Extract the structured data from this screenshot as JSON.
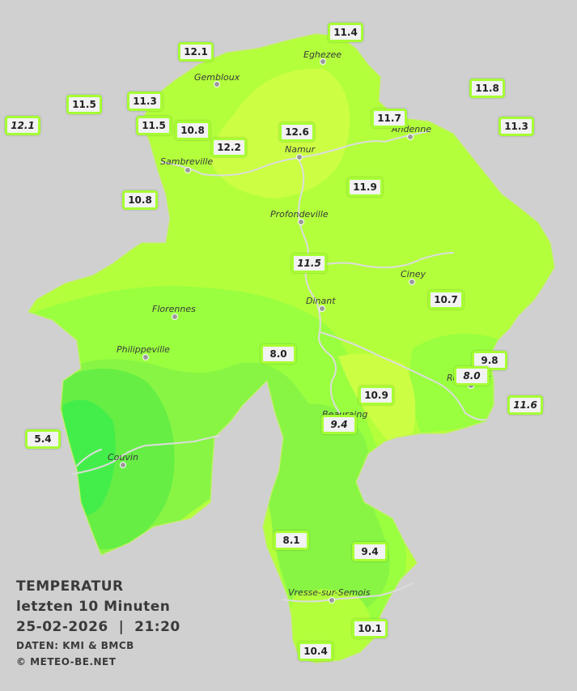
{
  "legend": {
    "title": "TEMPERATUR",
    "subtitle": "letzten 10 Minuten",
    "datetime": "25-02-2026  |  21:20",
    "source": "DATEN: KMI & BMCB",
    "copyright": "© METEO-BE.NET"
  },
  "colors": {
    "background": "#d0d0d0",
    "temp_12_13": "#ccff44",
    "temp_11_12": "#b3ff3c",
    "temp_10_11": "#99ff3f",
    "temp_9_10": "#88f544",
    "temp_8_9": "#66ee44",
    "temp_7_8": "#44ee4a",
    "station_border": "#a6ff33",
    "river": "#d9d9d9"
  },
  "cities": [
    {
      "name": "Eghezee"
    },
    {
      "name": "Gembloux"
    },
    {
      "name": "Andenne"
    },
    {
      "name": "Namur"
    },
    {
      "name": "Sambreville"
    },
    {
      "name": "Profondeville"
    },
    {
      "name": "Ciney"
    },
    {
      "name": "Dinant"
    },
    {
      "name": "Florennes"
    },
    {
      "name": "Philippeville"
    },
    {
      "name": "Rochefort"
    },
    {
      "name": "Beauraing"
    },
    {
      "name": "Couvin"
    },
    {
      "name": "Vresse-sur-Semois"
    }
  ],
  "stations": [
    {
      "value": "11.4",
      "italic": false
    },
    {
      "value": "12.1",
      "italic": false
    },
    {
      "value": "11.8",
      "italic": false
    },
    {
      "value": "11.5",
      "italic": false
    },
    {
      "value": "11.3",
      "italic": false
    },
    {
      "value": "12.1",
      "italic": true
    },
    {
      "value": "11.5",
      "italic": false
    },
    {
      "value": "10.8",
      "italic": false
    },
    {
      "value": "12.6",
      "italic": false
    },
    {
      "value": "11.7",
      "italic": false
    },
    {
      "value": "11.3",
      "italic": false
    },
    {
      "value": "12.2",
      "italic": false
    },
    {
      "value": "11.9",
      "italic": false
    },
    {
      "value": "10.8",
      "italic": false
    },
    {
      "value": "11.5",
      "italic": true
    },
    {
      "value": "10.7",
      "italic": false
    },
    {
      "value": "8.0",
      "italic": false
    },
    {
      "value": "9.8",
      "italic": false
    },
    {
      "value": "8.0",
      "italic": true
    },
    {
      "value": "10.9",
      "italic": false
    },
    {
      "value": "11.6",
      "italic": true
    },
    {
      "value": "5.4",
      "italic": false
    },
    {
      "value": "9.4",
      "italic": true
    },
    {
      "value": "8.1",
      "italic": false
    },
    {
      "value": "9.4",
      "italic": false
    },
    {
      "value": "10.1",
      "italic": false
    },
    {
      "value": "10.4",
      "italic": false
    }
  ]
}
